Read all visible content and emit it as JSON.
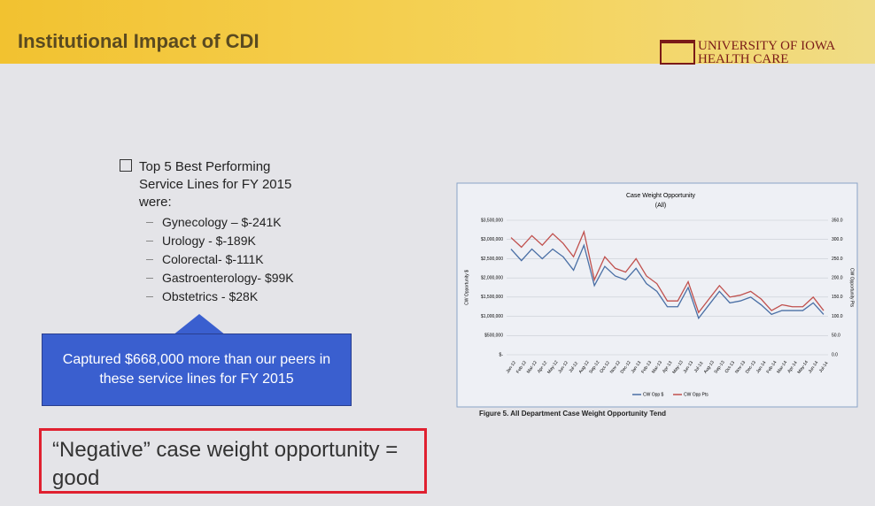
{
  "header": {
    "title": "Institutional Impact of CDI",
    "logo_line1": "UNIVERSITY OF IOWA",
    "logo_line2": "HEALTH CARE"
  },
  "bullet": {
    "text": "Top 5 Best Performing Service Lines for FY 2015 were:",
    "items": [
      "Gynecology – $-241K",
      "Urology - $-189K",
      "Colorectal- $-111K",
      "Gastroenterology- $99K",
      "Obstetrics - $28K"
    ]
  },
  "callout": "Captured $668,000 more than our peers in these service lines for FY 2015",
  "note": "“Negative” case weight opportunity = good",
  "caption": "Figure 5. All Department Case Weight Opportunity Tend",
  "chart_data": {
    "type": "line",
    "title": "Case Weight Opportunity",
    "subtitle": "(All)",
    "y_label": "CW Opportunity $",
    "y2_label": "CW Opportunity Pts",
    "categories": [
      "Jan-12",
      "Feb-12",
      "Mar-12",
      "Apr-12",
      "May-12",
      "Jun-12",
      "Jul-12",
      "Aug-12",
      "Sep-12",
      "Oct-12",
      "Nov-12",
      "Dec-12",
      "Jan-13",
      "Feb-13",
      "Mar-13",
      "Apr-13",
      "May-13",
      "Jun-13",
      "Jul-13",
      "Aug-13",
      "Sep-13",
      "Oct-13",
      "Nov-13",
      "Dec-13",
      "Jan-14",
      "Feb-14",
      "Mar-14",
      "Apr-14",
      "May-14",
      "Jun-14",
      "Jul-14"
    ],
    "series": [
      {
        "name": "CW Opp $",
        "color": "#4a6fa5",
        "values": [
          2750000,
          2450000,
          2750000,
          2500000,
          2750000,
          2550000,
          2200000,
          2850000,
          1800000,
          2300000,
          2050000,
          1950000,
          2250000,
          1850000,
          1650000,
          1250000,
          1250000,
          1750000,
          950000,
          1300000,
          1650000,
          1350000,
          1400000,
          1500000,
          1300000,
          1050000,
          1150000,
          1150000,
          1150000,
          1350000,
          1050000
        ]
      },
      {
        "name": "CW Opp Pts",
        "color": "#c0504d",
        "axis": "y2",
        "values": [
          305,
          280,
          310,
          285,
          315,
          290,
          255,
          320,
          195,
          255,
          225,
          215,
          250,
          205,
          185,
          140,
          140,
          190,
          110,
          145,
          180,
          150,
          155,
          165,
          145,
          115,
          130,
          125,
          125,
          150,
          115
        ]
      }
    ],
    "ylim": [
      0,
      3500000
    ],
    "yticks": [
      {
        "value": 0,
        "label": "$-"
      },
      {
        "value": 500000,
        "label": "$500,000"
      },
      {
        "value": 1000000,
        "label": "$1,000,000"
      },
      {
        "value": 1500000,
        "label": "$1,500,000"
      },
      {
        "value": 2000000,
        "label": "$2,000,000"
      },
      {
        "value": 2500000,
        "label": "$2,500,000"
      },
      {
        "value": 3000000,
        "label": "$3,000,000"
      },
      {
        "value": 3500000,
        "label": "$3,500,000"
      }
    ],
    "y2lim": [
      0,
      350
    ],
    "y2ticks": [
      {
        "value": 0,
        "label": "0.0"
      },
      {
        "value": 50,
        "label": "50.0"
      },
      {
        "value": 100,
        "label": "100.0"
      },
      {
        "value": 150,
        "label": "150.0"
      },
      {
        "value": 200,
        "label": "200.0"
      },
      {
        "value": 250,
        "label": "250.0"
      },
      {
        "value": 300,
        "label": "300.0"
      },
      {
        "value": 350,
        "label": "350.0"
      }
    ],
    "grid": true
  }
}
